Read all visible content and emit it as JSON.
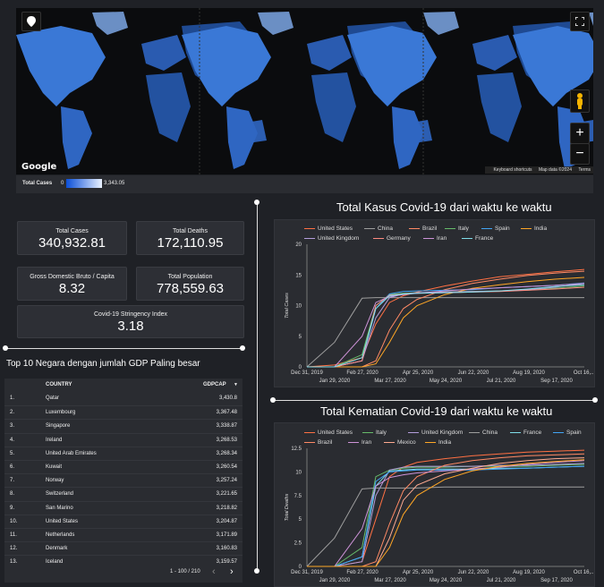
{
  "map": {
    "google_label": "Google",
    "attribution": [
      "Keyboard shortcuts",
      "Map data ©2024",
      "Terms"
    ],
    "fullscreen_icon": "fullscreen-icon",
    "locate_icon": "map-pin-icon",
    "pegman_icon": "pegman-icon",
    "zoom_in": "+",
    "zoom_out": "−",
    "legend": {
      "label": "Total Cases",
      "min": "0",
      "max": "3,343.05"
    },
    "colors": {
      "ocean": "#0b0c0e",
      "land_low": "#1c3f7a",
      "land_high": "#3d7fe0",
      "legend_low": "#0b4fd8",
      "legend_high": "#eaf2ff"
    }
  },
  "kpis": [
    {
      "label": "Total Cases",
      "value": "340,932.81"
    },
    {
      "label": "Total Deaths",
      "value": "172,110.95"
    },
    {
      "label": "Gross Domestic Bruto / Capita",
      "value": "8.32"
    },
    {
      "label": "Total Population",
      "value": "778,559.63"
    },
    {
      "label": "Covid-19 Stringency Index",
      "value": "3.18"
    }
  ],
  "table": {
    "title": "Top 10 Negara dengan jumlah GDP Paling besar",
    "col_country": "COUNTRY",
    "col_value": "GDPCAP",
    "sort_icon": "sort-desc-icon",
    "rows": [
      {
        "n": "1.",
        "country": "Qatar",
        "value": "3,430.8"
      },
      {
        "n": "2.",
        "country": "Luxembourg",
        "value": "3,367.48"
      },
      {
        "n": "3.",
        "country": "Singapore",
        "value": "3,338.87"
      },
      {
        "n": "4.",
        "country": "Ireland",
        "value": "3,268.53"
      },
      {
        "n": "5.",
        "country": "United Arab Emirates",
        "value": "3,268.34"
      },
      {
        "n": "6.",
        "country": "Kuwait",
        "value": "3,260.54"
      },
      {
        "n": "7.",
        "country": "Norway",
        "value": "3,257.24"
      },
      {
        "n": "8.",
        "country": "Switzerland",
        "value": "3,221.65"
      },
      {
        "n": "9.",
        "country": "San Marino",
        "value": "3,218.82"
      },
      {
        "n": "10.",
        "country": "United States",
        "value": "3,204.87"
      },
      {
        "n": "11.",
        "country": "Netherlands",
        "value": "3,171.89"
      },
      {
        "n": "12.",
        "country": "Denmark",
        "value": "3,160.83"
      },
      {
        "n": "13.",
        "country": "Iceland",
        "value": "3,159.57"
      }
    ],
    "pagination": "1 - 100 / 210",
    "prev": "‹",
    "next": "›"
  },
  "chart_data": [
    {
      "type": "line",
      "title": "Total Kasus Covid-19 dari waktu ke waktu",
      "xlabel": "",
      "ylabel": "Total Cases",
      "ylim": [
        0,
        20
      ],
      "yticks": [
        "0",
        "5",
        "10",
        "15",
        "20"
      ],
      "xticks_top": [
        "Dec 31, 2019",
        "Feb 27, 2020",
        "Apr 25, 2020",
        "Jun 22, 2020",
        "Aug 19, 2020",
        "Oct 16,..."
      ],
      "xticks_bottom": [
        "Jan 29, 2020",
        "Mar 27, 2020",
        "May 24, 2020",
        "Jul 21, 2020",
        "Sep 17, 2020"
      ],
      "x_days": [
        0,
        28,
        56,
        70,
        84,
        98,
        112,
        140,
        168,
        196,
        224,
        252,
        282
      ],
      "series": [
        {
          "name": "United States",
          "color": "#ff7043",
          "values": [
            0,
            0.3,
            1.5,
            7,
            10.5,
            11.6,
            12.2,
            13.2,
            14.0,
            14.7,
            15.1,
            15.5,
            15.9
          ]
        },
        {
          "name": "China",
          "color": "#9e9e9e",
          "values": [
            0,
            4,
            11.2,
            11.3,
            11.3,
            11.3,
            11.3,
            11.3,
            11.3,
            11.3,
            11.3,
            11.3,
            11.3
          ]
        },
        {
          "name": "Brazil",
          "color": "#ff8a65",
          "values": [
            0,
            0,
            0,
            1,
            6,
            9.5,
            11,
            12.6,
            13.6,
            14.3,
            14.9,
            15.3,
            15.6
          ]
        },
        {
          "name": "Italy",
          "color": "#66bb6a",
          "values": [
            0,
            0,
            2,
            10,
            11.8,
            12,
            12.1,
            12.2,
            12.3,
            12.4,
            12.5,
            12.8,
            13.2
          ]
        },
        {
          "name": "Spain",
          "color": "#42a5f5",
          "values": [
            0,
            0,
            1,
            9.5,
            11.9,
            12.3,
            12.4,
            12.5,
            12.6,
            12.9,
            13.1,
            13.3,
            13.7
          ]
        },
        {
          "name": "India",
          "color": "#ffa726",
          "values": [
            0,
            0,
            0,
            0.5,
            4,
            8,
            10,
            11.8,
            12.8,
            13.4,
            13.9,
            14.3,
            14.6
          ]
        },
        {
          "name": "United Kingdom",
          "color": "#b39ddb",
          "values": [
            0,
            0,
            1,
            8,
            11.3,
            11.9,
            12.1,
            12.2,
            12.3,
            12.4,
            12.6,
            13,
            13.6
          ]
        },
        {
          "name": "Germany",
          "color": "#ff8a80",
          "values": [
            0,
            0,
            1,
            10,
            11.7,
            11.9,
            12,
            12.1,
            12.2,
            12.3,
            12.5,
            12.7,
            13
          ]
        },
        {
          "name": "Iran",
          "color": "#ce93d8",
          "values": [
            0,
            0,
            5,
            10.5,
            11.5,
            11.8,
            12,
            12.4,
            12.7,
            12.9,
            13.1,
            13.3,
            13.6
          ]
        },
        {
          "name": "France",
          "color": "#80deea",
          "values": [
            0,
            0,
            1.5,
            9.5,
            11.6,
            11.9,
            12,
            12.1,
            12.2,
            12.4,
            12.7,
            13.1,
            13.4
          ]
        }
      ]
    },
    {
      "type": "line",
      "title": "Total Kematian Covid-19 dari waktu ke waktu",
      "xlabel": "",
      "ylabel": "Total Deaths",
      "ylim": [
        0,
        12.5
      ],
      "yticks": [
        "0",
        "2.5",
        "5",
        "7.5",
        "10",
        "12.5"
      ],
      "xticks_top": [
        "Dec 31, 2019",
        "Feb 27, 2020",
        "Apr 25, 2020",
        "Jun 22, 2020",
        "Aug 19, 2020",
        "Oct 16,..."
      ],
      "xticks_bottom": [
        "Jan 29, 2020",
        "Mar 27, 2020",
        "May 24, 2020",
        "Jul 21, 2020",
        "Sep 17, 2020"
      ],
      "x_days": [
        0,
        28,
        56,
        70,
        84,
        98,
        112,
        140,
        168,
        196,
        224,
        252,
        282
      ],
      "series": [
        {
          "name": "United States",
          "color": "#ff7043",
          "values": [
            0,
            0,
            0.5,
            5,
            9.5,
            10.5,
            11,
            11.4,
            11.7,
            11.9,
            12.1,
            12.2,
            12.3
          ]
        },
        {
          "name": "Italy",
          "color": "#66bb6a",
          "values": [
            0,
            0,
            2,
            9.5,
            10.2,
            10.4,
            10.5,
            10.5,
            10.6,
            10.6,
            10.6,
            10.7,
            10.8
          ]
        },
        {
          "name": "United Kingdom",
          "color": "#b39ddb",
          "values": [
            0,
            0,
            0.5,
            7.5,
            10.2,
            10.5,
            10.6,
            10.6,
            10.6,
            10.7,
            10.7,
            10.8,
            10.9
          ]
        },
        {
          "name": "China",
          "color": "#9e9e9e",
          "values": [
            0,
            3,
            8.2,
            8.3,
            8.3,
            8.3,
            8.3,
            8.4,
            8.4,
            8.4,
            8.4,
            8.4,
            8.4
          ]
        },
        {
          "name": "France",
          "color": "#80deea",
          "values": [
            0,
            0,
            1,
            8.5,
            10.1,
            10.2,
            10.3,
            10.3,
            10.3,
            10.4,
            10.4,
            10.5,
            10.6
          ]
        },
        {
          "name": "Spain",
          "color": "#42a5f5",
          "values": [
            0,
            0,
            1,
            9,
            10,
            10.1,
            10.2,
            10.2,
            10.2,
            10.3,
            10.4,
            10.5,
            10.6
          ]
        },
        {
          "name": "Brazil",
          "color": "#ff8a65",
          "values": [
            0,
            0,
            0,
            0.5,
            4.5,
            8,
            9.5,
            10.7,
            11.2,
            11.5,
            11.7,
            11.8,
            11.9
          ]
        },
        {
          "name": "Iran",
          "color": "#ce93d8",
          "values": [
            0,
            0,
            4,
            8.5,
            9.4,
            9.7,
            9.9,
            10.1,
            10.3,
            10.5,
            10.8,
            11,
            11.2
          ]
        },
        {
          "name": "Mexico",
          "color": "#ffab91",
          "values": [
            0,
            0,
            0,
            0,
            3,
            7,
            8.6,
            9.8,
            10.4,
            10.9,
            11.2,
            11.4,
            11.5
          ]
        },
        {
          "name": "India",
          "color": "#ffa726",
          "values": [
            0,
            0,
            0,
            0,
            2,
            5.5,
            7.5,
            9.2,
            10.1,
            10.6,
            10.9,
            11.1,
            11.3
          ]
        }
      ]
    }
  ]
}
